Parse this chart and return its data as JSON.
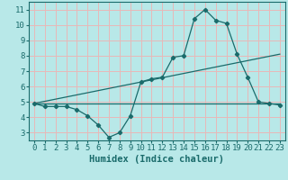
{
  "title": "",
  "xlabel": "Humidex (Indice chaleur)",
  "xlim": [
    -0.5,
    23.5
  ],
  "ylim": [
    2.5,
    11.5
  ],
  "yticks": [
    3,
    4,
    5,
    6,
    7,
    8,
    9,
    10,
    11
  ],
  "xticks": [
    0,
    1,
    2,
    3,
    4,
    5,
    6,
    7,
    8,
    9,
    10,
    11,
    12,
    13,
    14,
    15,
    16,
    17,
    18,
    19,
    20,
    21,
    22,
    23
  ],
  "background_color": "#b8e8e8",
  "grid_color": "#e8b8b8",
  "line_color": "#1a6b6b",
  "series": [
    {
      "x": [
        0,
        1,
        2,
        3,
        4,
        5,
        6,
        7,
        8,
        9,
        10,
        11,
        12,
        13,
        14,
        15,
        16,
        17,
        18,
        19,
        20,
        21,
        22,
        23
      ],
      "y": [
        4.9,
        4.7,
        4.7,
        4.7,
        4.5,
        4.1,
        3.5,
        2.7,
        3.0,
        4.1,
        6.3,
        6.5,
        6.6,
        7.9,
        8.0,
        10.4,
        11.0,
        10.3,
        10.1,
        8.1,
        6.6,
        5.0,
        4.9,
        4.8
      ],
      "marker": true
    },
    {
      "x": [
        0,
        23
      ],
      "y": [
        4.9,
        4.9
      ],
      "marker": false
    },
    {
      "x": [
        0,
        23
      ],
      "y": [
        4.9,
        8.1
      ],
      "marker": false
    }
  ],
  "tick_fontsize": 6.5,
  "xlabel_fontsize": 7.5
}
